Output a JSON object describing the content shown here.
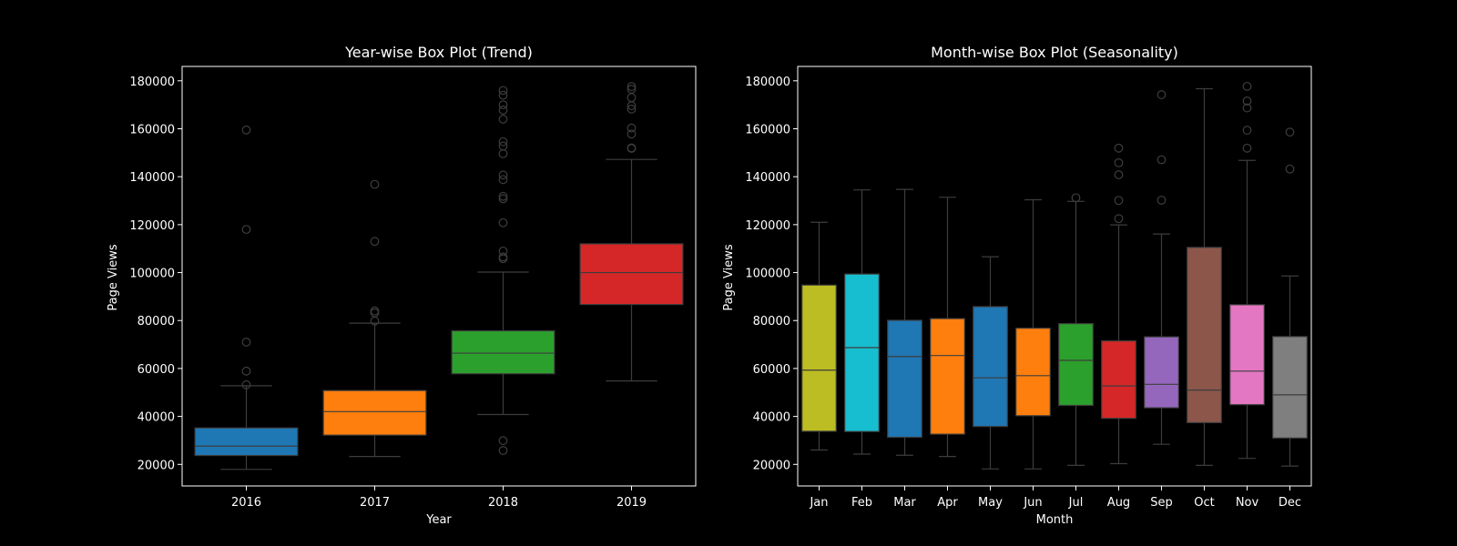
{
  "chart_data": [
    {
      "type": "box",
      "title": "Year-wise Box Plot (Trend)",
      "xlabel": "Year",
      "ylabel": "Page Views",
      "ylim": [
        11000,
        186000
      ],
      "yticks": [
        20000,
        40000,
        60000,
        80000,
        100000,
        120000,
        140000,
        160000,
        180000
      ],
      "categories": [
        "2016",
        "2017",
        "2018",
        "2019"
      ],
      "boxes": [
        {
          "category": "2016",
          "color": "#1f77b4",
          "whisker_low": 17900,
          "q1": 23700,
          "median": 27600,
          "q3": 35200,
          "whisker_high": 52800,
          "outliers": [
            53200,
            58900,
            71000,
            118000,
            159500
          ]
        },
        {
          "category": "2017",
          "color": "#ff7f0e",
          "whisker_low": 23300,
          "q1": 32200,
          "median": 42000,
          "q3": 50800,
          "whisker_high": 78900,
          "outliers": [
            79800,
            83200,
            84000,
            113000,
            136800
          ]
        },
        {
          "category": "2018",
          "color": "#2ca02c",
          "whisker_low": 40800,
          "q1": 57800,
          "median": 66400,
          "q3": 75700,
          "whisker_high": 100200,
          "outliers": [
            25800,
            29900,
            105800,
            106500,
            109000,
            120800,
            130800,
            131800,
            138800,
            140700,
            149600,
            152800,
            154600,
            164000,
            167800,
            170000,
            174000,
            176000
          ]
        },
        {
          "category": "2019",
          "color": "#d62728",
          "whisker_low": 54800,
          "q1": 86700,
          "median": 100000,
          "q3": 112000,
          "whisker_high": 147200,
          "outliers": [
            151800,
            152000,
            157800,
            160300,
            168200,
            169600,
            173000,
            176500,
            177600
          ]
        }
      ]
    },
    {
      "type": "box",
      "title": "Month-wise Box Plot (Seasonality)",
      "xlabel": "Month",
      "ylabel": "Page Views",
      "ylim": [
        11000,
        186000
      ],
      "yticks": [
        20000,
        40000,
        60000,
        80000,
        100000,
        120000,
        140000,
        160000,
        180000
      ],
      "categories": [
        "Jan",
        "Feb",
        "Mar",
        "Apr",
        "May",
        "Jun",
        "Jul",
        "Aug",
        "Sep",
        "Oct",
        "Nov",
        "Dec"
      ],
      "boxes": [
        {
          "category": "Jan",
          "color": "#bcbd22",
          "whisker_low": 26000,
          "q1": 33800,
          "median": 59300,
          "q3": 94800,
          "whisker_high": 121000,
          "outliers": []
        },
        {
          "category": "Feb",
          "color": "#17becf",
          "whisker_low": 24300,
          "q1": 33700,
          "median": 68700,
          "q3": 99400,
          "whisker_high": 134500,
          "outliers": []
        },
        {
          "category": "Mar",
          "color": "#1f77b4",
          "whisker_low": 23800,
          "q1": 31300,
          "median": 65000,
          "q3": 80100,
          "whisker_high": 134700,
          "outliers": []
        },
        {
          "category": "Apr",
          "color": "#ff7f0e",
          "whisker_low": 23300,
          "q1": 32600,
          "median": 65400,
          "q3": 80800,
          "whisker_high": 131400,
          "outliers": []
        },
        {
          "category": "May",
          "color": "#1f77b4",
          "whisker_low": 18100,
          "q1": 35800,
          "median": 56100,
          "q3": 85800,
          "whisker_high": 106600,
          "outliers": []
        },
        {
          "category": "Jun",
          "color": "#ff7f0e",
          "whisker_low": 18100,
          "q1": 40300,
          "median": 57000,
          "q3": 76800,
          "whisker_high": 130400,
          "outliers": []
        },
        {
          "category": "Jul",
          "color": "#2ca02c",
          "whisker_low": 19600,
          "q1": 44600,
          "median": 63400,
          "q3": 78700,
          "whisker_high": 129700,
          "outliers": [
            131200
          ]
        },
        {
          "category": "Aug",
          "color": "#d62728",
          "whisker_low": 20300,
          "q1": 39200,
          "median": 52700,
          "q3": 71500,
          "whisker_high": 119900,
          "outliers": [
            122500,
            130100,
            140800,
            145800,
            151900
          ]
        },
        {
          "category": "Sep",
          "color": "#9467bd",
          "whisker_low": 28400,
          "q1": 43600,
          "median": 53400,
          "q3": 73200,
          "whisker_high": 116100,
          "outliers": [
            130200,
            147100,
            174200
          ]
        },
        {
          "category": "Oct",
          "color": "#8c564b",
          "whisker_low": 19600,
          "q1": 37400,
          "median": 51000,
          "q3": 110500,
          "whisker_high": 176700,
          "outliers": []
        },
        {
          "category": "Nov",
          "color": "#e377c2",
          "whisker_low": 22500,
          "q1": 44900,
          "median": 58900,
          "q3": 86600,
          "whisker_high": 146800,
          "outliers": [
            151900,
            159400,
            168700,
            171600,
            177700
          ]
        },
        {
          "category": "Dec",
          "color": "#7f7f7f",
          "whisker_low": 19300,
          "q1": 31000,
          "median": 49000,
          "q3": 73300,
          "whisker_high": 98600,
          "outliers": [
            143200,
            158600
          ]
        }
      ]
    }
  ]
}
